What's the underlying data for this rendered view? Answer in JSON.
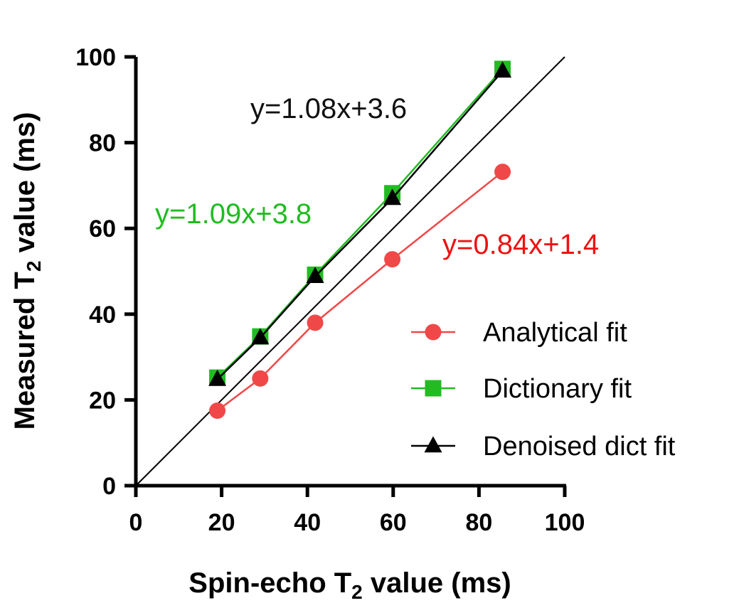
{
  "chart_data": {
    "type": "scatter",
    "xlabel": {
      "main": "Spin-echo T",
      "sub": "2",
      "rest": " value (ms)"
    },
    "ylabel": {
      "main": "Measured T",
      "sub": "2",
      "rest": " value (ms)"
    },
    "xlim": [
      0,
      100
    ],
    "ylim": [
      0,
      100
    ],
    "xticks": [
      "0",
      "20",
      "40",
      "60",
      "80",
      "100"
    ],
    "yticks": [
      "0",
      "20",
      "40",
      "60",
      "80",
      "100"
    ],
    "grid": false,
    "legend_position": "lower-right",
    "identity_line": {
      "from": [
        0,
        0
      ],
      "to": [
        100,
        100
      ],
      "color": "#000000"
    },
    "series": [
      {
        "name": "Analytical fit",
        "marker": "circle",
        "color": "#f04848",
        "x": [
          19,
          29,
          41.8,
          59.8,
          85.5
        ],
        "y": [
          17.5,
          25,
          38,
          52.8,
          73.2
        ],
        "equation": "y=0.84x+1.4",
        "equation_color": "#ee1111"
      },
      {
        "name": "Dictionary fit",
        "marker": "square",
        "color": "#22bb22",
        "x": [
          19,
          29,
          41.8,
          59.8,
          85.5
        ],
        "y": [
          25.2,
          34.8,
          49.2,
          68.2,
          97.2
        ],
        "equation": "y=1.09x+3.8",
        "equation_color": "#22bb22"
      },
      {
        "name": "Denoised dict fit",
        "marker": "triangle",
        "color": "#000000",
        "x": [
          19,
          29,
          41.8,
          59.8,
          85.5
        ],
        "y": [
          24.8,
          34.5,
          48.8,
          67,
          96.7
        ],
        "equation": "y=1.08x+3.6",
        "equation_color": "#111111"
      }
    ]
  }
}
